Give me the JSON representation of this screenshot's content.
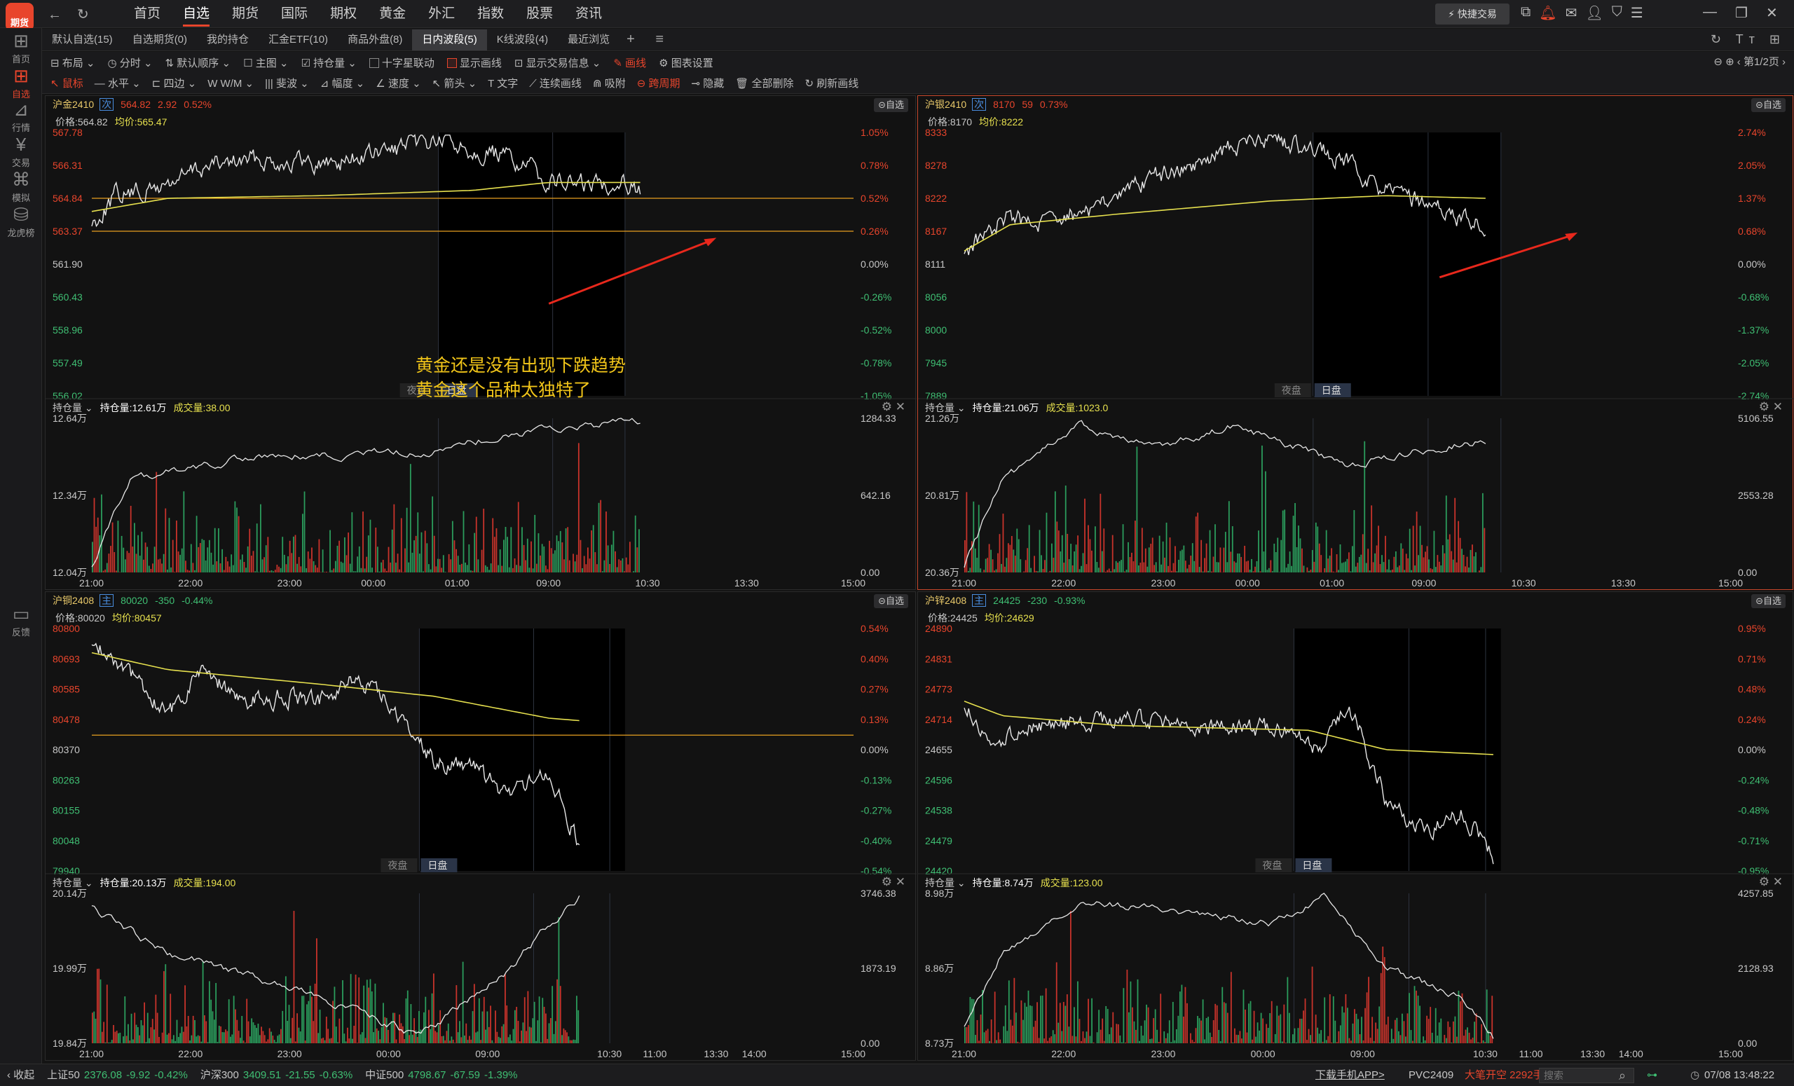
{
  "app": {
    "logo_text": "期货"
  },
  "nav": {
    "items": [
      "首页",
      "自选",
      "期货",
      "国际",
      "期权",
      "黄金",
      "外汇",
      "指数",
      "股票",
      "资讯"
    ],
    "active": "自选"
  },
  "top_right": {
    "quick_trade": "快捷交易"
  },
  "sidebar": [
    {
      "label": "首页",
      "icon": "grid-icon"
    },
    {
      "label": "自选",
      "icon": "plus-square-icon",
      "active": true
    },
    {
      "label": "行情",
      "icon": "chart-icon"
    },
    {
      "label": "交易",
      "icon": "yen-icon"
    },
    {
      "label": "模拟",
      "icon": "gamepad-icon"
    },
    {
      "label": "龙虎榜",
      "icon": "database-icon"
    },
    {
      "label": "反馈",
      "icon": "chat-icon"
    }
  ],
  "tabs": {
    "items": [
      "默认自选(15)",
      "自选期货(0)",
      "我的持仓",
      "汇金ETF(10)",
      "商品外盘(8)",
      "日内波段(5)",
      "K线波段(4)",
      "最近浏览"
    ],
    "active": "日内波段(5)"
  },
  "toolbar": {
    "items": [
      "布局",
      "分时",
      "默认顺序",
      "主图",
      "持仓量",
      "十字星联动",
      "显示画线",
      "显示交易信息",
      "画线",
      "图表设置"
    ],
    "page": "第1/2页"
  },
  "drawbar": {
    "items": [
      "鼠标",
      "水平",
      "四边",
      "W/M",
      "斐波",
      "幅度",
      "速度",
      "箭头",
      "文字",
      "连续画线",
      "吸附",
      "跨周期",
      "隐藏",
      "全部删除",
      "刷新画线"
    ]
  },
  "panels": [
    {
      "name": "沪金2410",
      "badge": "次",
      "price": "564.82",
      "change": "2.92",
      "pct": "0.52%",
      "price_line": "价格:564.82",
      "avg_line": "均价:565.47",
      "fav": "自选",
      "y_left": [
        "567.78",
        "566.31",
        "564.84",
        "563.37",
        "561.90",
        "560.43",
        "558.96",
        "557.49",
        "556.02"
      ],
      "y_right": [
        "1.05%",
        "0.78%",
        "0.52%",
        "0.26%",
        "0.00%",
        "-0.26%",
        "-0.52%",
        "-0.78%",
        "-1.05%"
      ],
      "night": "夜盘",
      "day": "日盘",
      "oi_label": "持仓量",
      "oi": "持仓量:12.61万",
      "vol": "成交量:38.00",
      "oi_left": [
        "12.64万",
        "12.34万",
        "12.04万"
      ],
      "vol_right": [
        "1284.33",
        "642.16",
        "0.00"
      ],
      "times": [
        "21:00",
        "22:00",
        "23:00",
        "00:00",
        "01:00",
        "09:00",
        "10:30",
        "13:30",
        "15:00"
      ],
      "annotation": [
        "黄金还是没有出现下跌趋势",
        "黄金这个品种太独特了"
      ]
    },
    {
      "name": "沪银2410",
      "badge": "次",
      "price": "8170",
      "change": "59",
      "pct": "0.73%",
      "price_line": "价格:8170",
      "avg_line": "均价:8222",
      "fav": "自选",
      "y_left": [
        "8333",
        "8278",
        "8222",
        "8167",
        "8111",
        "8056",
        "8000",
        "7945",
        "7889"
      ],
      "y_right": [
        "2.74%",
        "2.05%",
        "1.37%",
        "0.68%",
        "0.00%",
        "-0.68%",
        "-1.37%",
        "-2.05%",
        "-2.74%"
      ],
      "night": "夜盘",
      "day": "日盘",
      "oi_label": "持仓量",
      "oi": "持仓量:21.06万",
      "vol": "成交量:1023.0",
      "oi_left": [
        "21.26万",
        "20.81万",
        "20.36万"
      ],
      "vol_right": [
        "5106.55",
        "2553.28",
        "0.00"
      ],
      "times": [
        "21:00",
        "22:00",
        "23:00",
        "00:00",
        "01:00",
        "09:00",
        "10:30",
        "13:30",
        "15:00"
      ]
    },
    {
      "name": "沪铜2408",
      "badge": "主",
      "price": "80020",
      "change": "-350",
      "pct": "-0.44%",
      "price_line": "价格:80020",
      "avg_line": "均价:80457",
      "fav": "自选",
      "y_left": [
        "80800",
        "80693",
        "80585",
        "80478",
        "80370",
        "80263",
        "80155",
        "80048",
        "79940"
      ],
      "y_right": [
        "0.54%",
        "0.40%",
        "0.27%",
        "0.13%",
        "0.00%",
        "-0.13%",
        "-0.27%",
        "-0.40%",
        "-0.54%"
      ],
      "night": "夜盘",
      "day": "日盘",
      "oi_label": "持仓量",
      "oi": "持仓量:20.13万",
      "vol": "成交量:194.00",
      "oi_left": [
        "20.14万",
        "19.99万",
        "19.84万"
      ],
      "vol_right": [
        "3746.38",
        "1873.19",
        "0.00"
      ],
      "times": [
        "21:00",
        "22:00",
        "23:00",
        "00:00",
        "09:00",
        "10:30",
        "11:00",
        "13:30",
        "14:00",
        "15:00"
      ]
    },
    {
      "name": "沪锌2408",
      "badge": "主",
      "price": "24425",
      "change": "-230",
      "pct": "-0.93%",
      "price_line": "价格:24425",
      "avg_line": "均价:24629",
      "fav": "自选",
      "y_left": [
        "24890",
        "24831",
        "24773",
        "24714",
        "24655",
        "24596",
        "24538",
        "24479",
        "24420"
      ],
      "y_right": [
        "0.95%",
        "0.71%",
        "0.48%",
        "0.24%",
        "0.00%",
        "-0.24%",
        "-0.48%",
        "-0.71%",
        "-0.95%"
      ],
      "night": "夜盘",
      "day": "日盘",
      "oi_label": "持仓量",
      "oi": "持仓量:8.74万",
      "vol": "成交量:123.00",
      "oi_left": [
        "8.98万",
        "8.86万",
        "8.73万"
      ],
      "vol_right": [
        "4257.85",
        "2128.93",
        "0.00"
      ],
      "times": [
        "21:00",
        "22:00",
        "23:00",
        "00:00",
        "09:00",
        "10:30",
        "11:00",
        "13:30",
        "14:00",
        "15:00"
      ]
    }
  ],
  "status": {
    "collapse": "收起",
    "indices": [
      {
        "name": "上证50",
        "val": "2376.08",
        "chg": "-9.92",
        "pct": "-0.42%"
      },
      {
        "name": "沪深300",
        "val": "3409.51",
        "chg": "-21.55",
        "pct": "-0.63%"
      },
      {
        "name": "中证500",
        "val": "4798.67",
        "chg": "-67.59",
        "pct": "-1.39%"
      }
    ],
    "download": "下载手机APP>",
    "ticker": "PVC2409",
    "ticker_msg": "大笔开空 2292手",
    "search_placeholder": "搜索",
    "datetime": "07/08 13:48:22"
  },
  "colors": {
    "up": "#e8452c",
    "down": "#3fbf73",
    "avg": "#e6e04e",
    "price": "#e8e8e8",
    "accent": "#e8452c"
  }
}
